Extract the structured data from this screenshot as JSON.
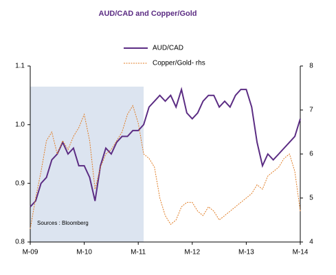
{
  "chart_data": {
    "type": "line",
    "title": "AUD/CAD and Copper/Gold",
    "annotation": "Sources : Bloomberg",
    "x": [
      2009.0,
      2009.1,
      2009.2,
      2009.3,
      2009.4,
      2009.5,
      2009.6,
      2009.7,
      2009.8,
      2009.9,
      2010.0,
      2010.1,
      2010.2,
      2010.3,
      2010.4,
      2010.5,
      2010.6,
      2010.7,
      2010.8,
      2010.9,
      2011.0,
      2011.1,
      2011.2,
      2011.3,
      2011.4,
      2011.5,
      2011.6,
      2011.7,
      2011.8,
      2011.9,
      2012.0,
      2012.1,
      2012.2,
      2012.3,
      2012.4,
      2012.5,
      2012.6,
      2012.7,
      2012.8,
      2012.9,
      2013.0,
      2013.1,
      2013.2,
      2013.3,
      2013.4,
      2013.5,
      2013.6,
      2013.7,
      2013.8,
      2013.9,
      2014.0
    ],
    "series": [
      {
        "name": "AUD/CAD",
        "color": "#5b2c83",
        "values": [
          0.86,
          0.87,
          0.9,
          0.91,
          0.94,
          0.95,
          0.97,
          0.95,
          0.96,
          0.93,
          0.93,
          0.91,
          0.87,
          0.93,
          0.96,
          0.95,
          0.97,
          0.98,
          0.98,
          0.99,
          0.99,
          1.0,
          1.03,
          1.04,
          1.05,
          1.04,
          1.05,
          1.03,
          1.06,
          1.02,
          1.01,
          1.02,
          1.04,
          1.05,
          1.05,
          1.03,
          1.04,
          1.03,
          1.05,
          1.06,
          1.06,
          1.03,
          0.97,
          0.93,
          0.95,
          0.94,
          0.95,
          0.96,
          0.97,
          0.98,
          1.01
        ]
      },
      {
        "name": "Copper/Gold- rhs",
        "color": "#e07b22",
        "axis": "y2",
        "dashed": true,
        "values": [
          4.3,
          5.0,
          5.6,
          6.3,
          6.5,
          6.0,
          6.3,
          6.1,
          6.4,
          6.6,
          6.9,
          6.3,
          5.2,
          5.7,
          6.0,
          6.1,
          6.3,
          6.5,
          6.9,
          7.1,
          6.7,
          6.0,
          5.9,
          5.7,
          5.0,
          4.6,
          4.4,
          4.5,
          4.8,
          4.9,
          4.9,
          4.7,
          4.6,
          4.8,
          4.7,
          4.5,
          4.6,
          4.7,
          4.8,
          4.9,
          5.0,
          5.1,
          5.3,
          5.2,
          5.5,
          5.6,
          5.7,
          5.9,
          6.0,
          5.6,
          4.7
        ]
      }
    ],
    "xlim": [
      2009.0,
      2014.0
    ],
    "xticks": [
      {
        "value": 2009,
        "label": "M-09"
      },
      {
        "value": 2010,
        "label": "M-10"
      },
      {
        "value": 2011,
        "label": "M-11"
      },
      {
        "value": 2012,
        "label": "M-12"
      },
      {
        "value": 2013,
        "label": "M-13"
      },
      {
        "value": 2014,
        "label": "M-14"
      }
    ],
    "ylim": [
      0.8,
      1.1
    ],
    "yticks": [
      0.8,
      0.9,
      {
        "value": 1.0,
        "label": "1.0"
      },
      1.1
    ],
    "y2lim": [
      4,
      8
    ],
    "y2ticks": [
      4,
      5,
      6,
      7,
      8
    ],
    "shaded_range": [
      2009.0,
      2011.1
    ],
    "shade_color": "#dce4f0",
    "grid": false,
    "legend": "top"
  }
}
